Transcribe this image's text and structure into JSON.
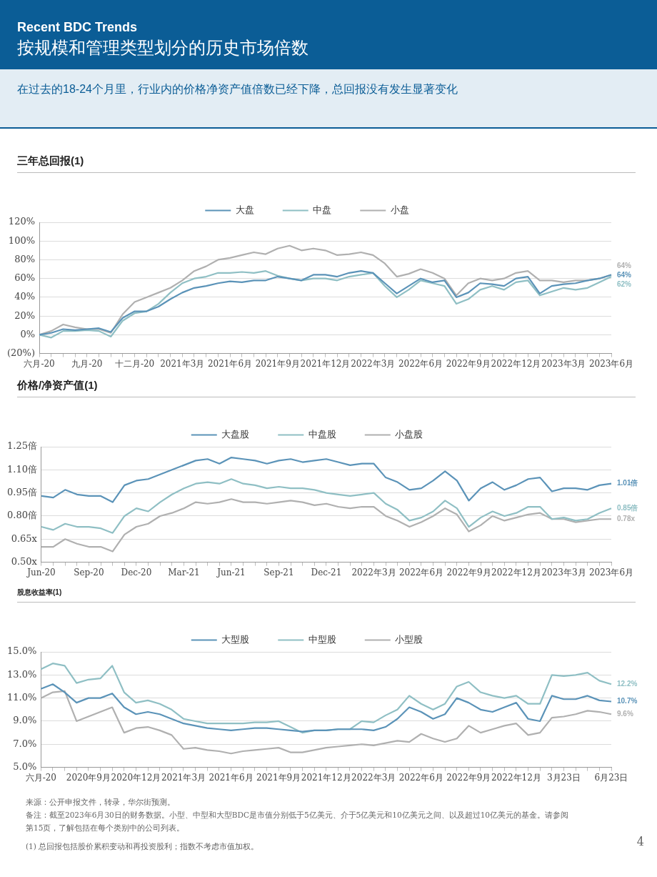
{
  "chart_data": [
    {
      "type": "other",
      "title": "Recent BDC Trends",
      "subtitle": "按规模和管理类型划分的历史市场倍数",
      "annotations": [
        "在过去的18-24个月里，行业内的价格净资产值倍数已经下降，总回报没有发生显著变化"
      ]
    },
    {
      "type": "line",
      "title": "三年总回报(1)",
      "categories": [
        "六月-20",
        null,
        null,
        null,
        "九月-20",
        null,
        null,
        null,
        "十二月-20",
        null,
        null,
        null,
        "2021年3月",
        null,
        null,
        null,
        "2021年6月",
        null,
        null,
        null,
        "2021年9月",
        null,
        null,
        null,
        "2021年12月",
        null,
        null,
        null,
        "2022年3月",
        null,
        null,
        null,
        "2022年6月",
        null,
        null,
        null,
        "2022年9月",
        null,
        null,
        null,
        "2022年12月",
        null,
        null,
        null,
        "2023年3月",
        null,
        null,
        null,
        "2023年6月"
      ],
      "series": [
        {
          "name": "大盘",
          "color": "#5b93b8",
          "values": [
            0,
            2,
            6,
            5,
            6,
            7,
            3,
            18,
            25,
            25,
            30,
            38,
            45,
            50,
            52,
            55,
            57,
            56,
            58,
            58,
            62,
            60,
            58,
            64,
            64,
            62,
            66,
            68,
            66,
            55,
            44,
            52,
            60,
            56,
            58,
            40,
            45,
            55,
            54,
            52,
            60,
            62,
            44,
            52,
            54,
            55,
            58,
            60,
            64
          ],
          "value_labels": [
            null,
            null,
            null,
            null,
            null,
            null,
            null,
            null,
            null,
            null,
            null,
            null,
            null,
            null,
            null,
            null,
            null,
            null,
            null,
            null,
            null,
            null,
            null,
            null,
            null,
            null,
            null,
            null,
            null,
            null,
            null,
            null,
            null,
            null,
            null,
            null,
            null,
            null,
            null,
            null,
            null,
            null,
            null,
            null,
            null,
            null,
            null,
            null,
            "64%"
          ]
        },
        {
          "name": "中盘",
          "color": "#8fbfc4",
          "values": [
            0,
            -3,
            4,
            4,
            5,
            4,
            -2,
            15,
            23,
            25,
            33,
            45,
            55,
            60,
            62,
            66,
            66,
            67,
            66,
            68,
            63,
            60,
            58,
            60,
            60,
            58,
            62,
            64,
            66,
            52,
            40,
            48,
            58,
            55,
            52,
            33,
            38,
            48,
            52,
            48,
            56,
            58,
            42,
            46,
            50,
            48,
            50,
            56,
            62
          ],
          "value_labels": [
            null,
            null,
            null,
            null,
            null,
            null,
            null,
            null,
            null,
            null,
            null,
            null,
            null,
            null,
            null,
            null,
            null,
            null,
            null,
            null,
            null,
            null,
            null,
            null,
            null,
            null,
            null,
            null,
            null,
            null,
            null,
            null,
            null,
            null,
            null,
            null,
            null,
            null,
            null,
            null,
            null,
            null,
            null,
            null,
            null,
            null,
            null,
            null,
            "62%"
          ]
        },
        {
          "name": "小盘",
          "color": "#b0b0b0",
          "values": [
            0,
            4,
            11,
            8,
            6,
            6,
            2,
            22,
            35,
            40,
            45,
            50,
            58,
            68,
            73,
            80,
            82,
            85,
            88,
            86,
            92,
            95,
            90,
            92,
            90,
            85,
            86,
            88,
            85,
            76,
            62,
            65,
            70,
            66,
            60,
            42,
            55,
            60,
            58,
            60,
            66,
            68,
            58,
            58,
            56,
            58,
            58,
            60,
            64
          ],
          "value_labels": [
            null,
            null,
            null,
            null,
            null,
            null,
            null,
            null,
            null,
            null,
            null,
            null,
            null,
            null,
            null,
            null,
            null,
            null,
            null,
            null,
            null,
            null,
            null,
            null,
            null,
            null,
            null,
            null,
            null,
            null,
            null,
            null,
            null,
            null,
            null,
            null,
            null,
            null,
            null,
            null,
            null,
            null,
            null,
            null,
            null,
            null,
            null,
            null,
            "64%"
          ]
        }
      ],
      "ylim": [
        -20,
        120
      ],
      "yticks": [
        {
          "value": -20,
          "label": "(20%)"
        },
        {
          "value": 0,
          "label": "0%"
        },
        {
          "value": 20,
          "label": "20%"
        },
        {
          "value": 40,
          "label": "40%"
        },
        {
          "value": 60,
          "label": "60%"
        },
        {
          "value": 80,
          "label": "80%"
        },
        {
          "value": 100,
          "label": "100%"
        },
        {
          "value": 120,
          "label": "120%"
        }
      ],
      "grid": "y",
      "legend": "top",
      "marker": "none",
      "line_style": "solid"
    },
    {
      "type": "line",
      "title": "价格/净资产值(1)",
      "categories": [
        "Jun-20",
        null,
        null,
        null,
        "Sep-20",
        null,
        null,
        null,
        "Dec-20",
        null,
        null,
        null,
        "Mar-21",
        null,
        null,
        null,
        "Jun-21",
        null,
        null,
        null,
        "Sep-21",
        null,
        null,
        null,
        "Dec-21",
        null,
        null,
        null,
        "2022年3月",
        null,
        null,
        null,
        "2022年6月",
        null,
        null,
        null,
        "2022年9月",
        null,
        null,
        null,
        "2022年12月",
        null,
        null,
        null,
        "2023年3月",
        null,
        null,
        null,
        "2023年6月"
      ],
      "series": [
        {
          "name": "大盘股",
          "color": "#5b93b8",
          "values": [
            0.93,
            0.92,
            0.97,
            0.94,
            0.93,
            0.93,
            0.89,
            1.0,
            1.03,
            1.04,
            1.07,
            1.1,
            1.13,
            1.16,
            1.17,
            1.14,
            1.18,
            1.17,
            1.16,
            1.14,
            1.16,
            1.17,
            1.15,
            1.16,
            1.17,
            1.15,
            1.13,
            1.14,
            1.14,
            1.05,
            1.02,
            0.97,
            0.98,
            1.03,
            1.09,
            1.03,
            0.9,
            0.98,
            1.02,
            0.97,
            1.0,
            1.04,
            1.05,
            0.96,
            0.98,
            0.98,
            0.97,
            1.0,
            1.01
          ],
          "value_labels": [
            null,
            null,
            null,
            null,
            null,
            null,
            null,
            null,
            null,
            null,
            null,
            null,
            null,
            null,
            null,
            null,
            null,
            null,
            null,
            null,
            null,
            null,
            null,
            null,
            null,
            null,
            null,
            null,
            null,
            null,
            null,
            null,
            null,
            null,
            null,
            null,
            null,
            null,
            null,
            null,
            null,
            null,
            null,
            null,
            null,
            null,
            null,
            null,
            "1.01倍"
          ]
        },
        {
          "name": "中盘股",
          "color": "#8fbfc4",
          "values": [
            0.73,
            0.71,
            0.75,
            0.73,
            0.73,
            0.72,
            0.69,
            0.8,
            0.85,
            0.83,
            0.89,
            0.94,
            0.98,
            1.01,
            1.02,
            1.01,
            1.04,
            1.01,
            1.0,
            0.98,
            0.99,
            0.98,
            0.98,
            0.97,
            0.95,
            0.94,
            0.93,
            0.94,
            0.95,
            0.88,
            0.84,
            0.77,
            0.79,
            0.83,
            0.9,
            0.85,
            0.73,
            0.79,
            0.83,
            0.8,
            0.82,
            0.86,
            0.86,
            0.78,
            0.79,
            0.77,
            0.78,
            0.82,
            0.85
          ],
          "value_labels": [
            null,
            null,
            null,
            null,
            null,
            null,
            null,
            null,
            null,
            null,
            null,
            null,
            null,
            null,
            null,
            null,
            null,
            null,
            null,
            null,
            null,
            null,
            null,
            null,
            null,
            null,
            null,
            null,
            null,
            null,
            null,
            null,
            null,
            null,
            null,
            null,
            null,
            null,
            null,
            null,
            null,
            null,
            null,
            null,
            null,
            null,
            null,
            null,
            "0.85倍"
          ]
        },
        {
          "name": "小盘股",
          "color": "#b0b0b0",
          "values": [
            0.6,
            0.6,
            0.65,
            0.62,
            0.6,
            0.6,
            0.57,
            0.68,
            0.73,
            0.75,
            0.8,
            0.82,
            0.85,
            0.89,
            0.88,
            0.89,
            0.91,
            0.89,
            0.89,
            0.88,
            0.89,
            0.9,
            0.89,
            0.87,
            0.88,
            0.86,
            0.85,
            0.86,
            0.86,
            0.8,
            0.77,
            0.73,
            0.76,
            0.8,
            0.85,
            0.81,
            0.7,
            0.74,
            0.8,
            0.77,
            0.79,
            0.81,
            0.82,
            0.78,
            0.78,
            0.76,
            0.77,
            0.78,
            0.78
          ],
          "value_labels": [
            null,
            null,
            null,
            null,
            null,
            null,
            null,
            null,
            null,
            null,
            null,
            null,
            null,
            null,
            null,
            null,
            null,
            null,
            null,
            null,
            null,
            null,
            null,
            null,
            null,
            null,
            null,
            null,
            null,
            null,
            null,
            null,
            null,
            null,
            null,
            null,
            null,
            null,
            null,
            null,
            null,
            null,
            null,
            null,
            null,
            null,
            null,
            null,
            "0.78x"
          ]
        }
      ],
      "ylim": [
        0.5,
        1.25
      ],
      "yticks": [
        {
          "value": 0.5,
          "label": "0.50x"
        },
        {
          "value": 0.65,
          "label": "0.65x"
        },
        {
          "value": 0.8,
          "label": "0.80倍"
        },
        {
          "value": 0.95,
          "label": "0.95倍"
        },
        {
          "value": 1.1,
          "label": "1.10倍"
        },
        {
          "value": 1.25,
          "label": "1.25倍"
        }
      ],
      "grid": "y",
      "legend": "top",
      "marker": "none",
      "line_style": "solid"
    },
    {
      "type": "line",
      "title": "股息收益率(1)",
      "categories": [
        "六月-20",
        null,
        null,
        null,
        "2020年9月",
        null,
        null,
        null,
        "2020年12月",
        null,
        null,
        null,
        "2021年3月",
        null,
        null,
        null,
        "2021年6月",
        null,
        null,
        null,
        "2021年9月",
        null,
        null,
        null,
        "2021年12月",
        null,
        null,
        null,
        "2022年3月",
        null,
        null,
        null,
        "2022年6月",
        null,
        null,
        null,
        "2022年9月",
        null,
        null,
        null,
        "2022年12月",
        null,
        null,
        null,
        "3月23日",
        null,
        null,
        null,
        "6月23日"
      ],
      "series": [
        {
          "name": "大型股",
          "color": "#5b93b8",
          "values": [
            11.8,
            12.2,
            11.5,
            10.6,
            11.0,
            11.0,
            11.4,
            10.2,
            9.6,
            9.8,
            9.6,
            9.2,
            8.8,
            8.6,
            8.4,
            8.3,
            8.2,
            8.3,
            8.4,
            8.4,
            8.3,
            8.2,
            8.1,
            8.2,
            8.2,
            8.3,
            8.3,
            8.3,
            8.2,
            8.5,
            9.2,
            10.2,
            9.8,
            9.2,
            9.6,
            11.0,
            10.6,
            10.0,
            9.8,
            10.2,
            10.6,
            9.2,
            9.0,
            11.2,
            10.9,
            10.9,
            11.2,
            10.8,
            10.7
          ],
          "value_labels": [
            null,
            null,
            null,
            null,
            null,
            null,
            null,
            null,
            null,
            null,
            null,
            null,
            null,
            null,
            null,
            null,
            null,
            null,
            null,
            null,
            null,
            null,
            null,
            null,
            null,
            null,
            null,
            null,
            null,
            null,
            null,
            null,
            null,
            null,
            null,
            null,
            null,
            null,
            null,
            null,
            null,
            null,
            null,
            null,
            null,
            null,
            null,
            null,
            "10.7%"
          ]
        },
        {
          "name": "中型股",
          "color": "#8fbfc4",
          "values": [
            13.5,
            14.0,
            13.8,
            12.3,
            12.6,
            12.7,
            13.8,
            11.5,
            10.6,
            10.8,
            10.5,
            10.0,
            9.2,
            9.0,
            8.8,
            8.8,
            8.8,
            8.8,
            8.9,
            8.9,
            9.0,
            8.5,
            8.0,
            8.2,
            8.2,
            8.3,
            8.3,
            9.0,
            8.9,
            9.5,
            10.0,
            11.2,
            10.5,
            10.0,
            10.5,
            12.0,
            12.4,
            11.5,
            11.2,
            11.0,
            11.2,
            10.5,
            10.5,
            13.0,
            12.9,
            13.0,
            13.2,
            12.5,
            12.2
          ],
          "value_labels": [
            null,
            null,
            null,
            null,
            null,
            null,
            null,
            null,
            null,
            null,
            null,
            null,
            null,
            null,
            null,
            null,
            null,
            null,
            null,
            null,
            null,
            null,
            null,
            null,
            null,
            null,
            null,
            null,
            null,
            null,
            null,
            null,
            null,
            null,
            null,
            null,
            null,
            null,
            null,
            null,
            null,
            null,
            null,
            null,
            null,
            null,
            null,
            null,
            "12.2%"
          ]
        },
        {
          "name": "小型股",
          "color": "#b0b0b0",
          "values": [
            11.0,
            11.5,
            11.6,
            9.0,
            9.4,
            9.8,
            10.2,
            8.0,
            8.4,
            8.5,
            8.2,
            7.8,
            6.6,
            6.7,
            6.5,
            6.4,
            6.2,
            6.4,
            6.5,
            6.6,
            6.7,
            6.3,
            6.3,
            6.5,
            6.7,
            6.8,
            6.9,
            7.0,
            6.9,
            7.1,
            7.3,
            7.2,
            7.9,
            7.5,
            7.2,
            7.5,
            8.6,
            8.0,
            8.3,
            8.6,
            8.8,
            7.8,
            8.0,
            9.3,
            9.4,
            9.6,
            9.9,
            9.8,
            9.6
          ],
          "value_labels": [
            null,
            null,
            null,
            null,
            null,
            null,
            null,
            null,
            null,
            null,
            null,
            null,
            null,
            null,
            null,
            null,
            null,
            null,
            null,
            null,
            null,
            null,
            null,
            null,
            null,
            null,
            null,
            null,
            null,
            null,
            null,
            null,
            null,
            null,
            null,
            null,
            null,
            null,
            null,
            null,
            null,
            null,
            null,
            null,
            null,
            null,
            null,
            null,
            "9.6%"
          ]
        }
      ],
      "ylim": [
        5,
        15
      ],
      "yticks": [
        {
          "value": 5,
          "label": "5.0%"
        },
        {
          "value": 7,
          "label": "7.0%"
        },
        {
          "value": 9,
          "label": "9.0%"
        },
        {
          "value": 11,
          "label": "11.0%"
        },
        {
          "value": 13,
          "label": "13.0%"
        },
        {
          "value": 15,
          "label": "15.0%"
        }
      ],
      "grid": "y",
      "legend": "top",
      "marker": "none",
      "line_style": "solid"
    },
    {
      "type": "other",
      "annotations": [
        "来源：公开申报文件，转录，华尔街预测。",
        "备注：截至2023年6月30日的财务数据。小型、中型和大型BDC是市值分别低于5亿美元、介于5亿美元和10亿美元之间、以及超过10亿美元的基金。请参阅第15页，了解包括在每个类别中的公司列表。",
        "(1)  总回报包括股价累积变动和再投资股利；指数不考虑市值加权。",
        "4"
      ]
    }
  ]
}
